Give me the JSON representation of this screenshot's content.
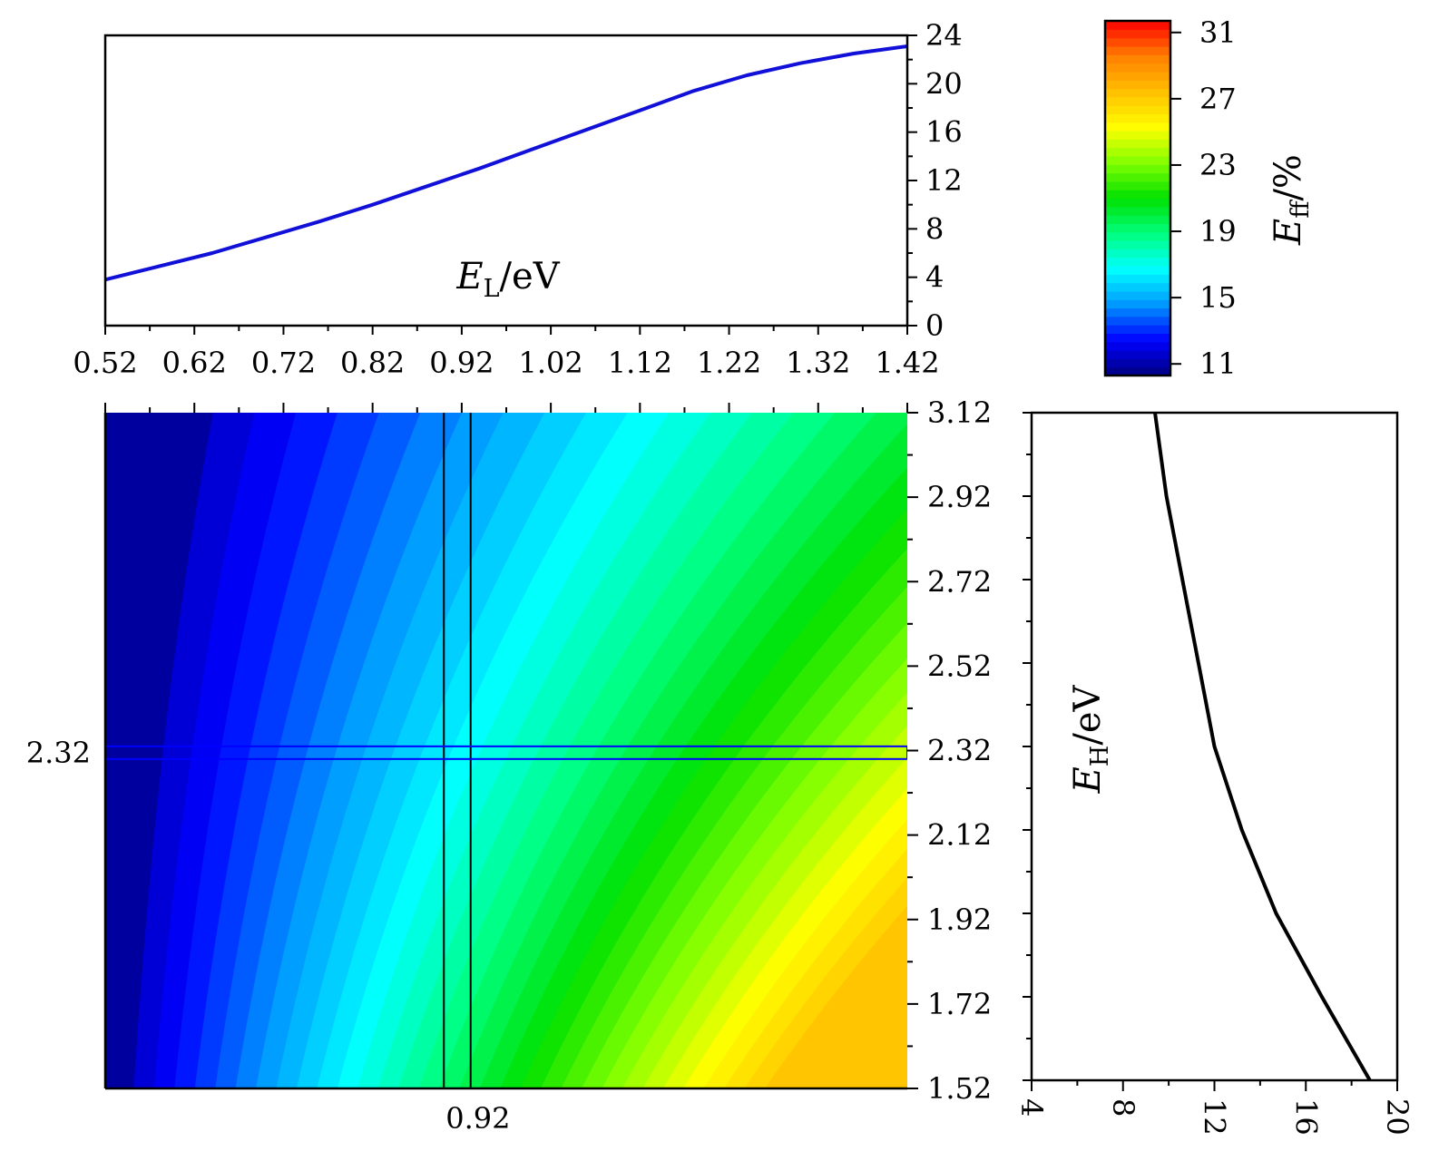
{
  "chart_data": [
    {
      "id": "top",
      "type": "line",
      "xlabel": {
        "main": "E",
        "sub": "L",
        "rest": "/eV"
      },
      "x_ticks": [
        "0.52",
        "0.62",
        "0.72",
        "0.82",
        "0.92",
        "1.02",
        "1.12",
        "1.22",
        "1.32",
        "1.42"
      ],
      "y_ticks": [
        "0",
        "4",
        "8",
        "12",
        "16",
        "20",
        "24"
      ],
      "xlim": [
        0.52,
        1.42
      ],
      "ylim": [
        0,
        24
      ],
      "color": "#1010d8",
      "series": [
        {
          "x": [
            0.52,
            0.58,
            0.64,
            0.7,
            0.76,
            0.82,
            0.88,
            0.94,
            1.0,
            1.06,
            1.12,
            1.18,
            1.24,
            1.3,
            1.36,
            1.42
          ],
          "y": [
            3.8,
            4.9,
            6.0,
            7.3,
            8.6,
            10.0,
            11.5,
            13.0,
            14.6,
            16.2,
            17.8,
            19.4,
            20.7,
            21.7,
            22.5,
            23.1
          ]
        }
      ]
    },
    {
      "id": "colorbar",
      "type": "heatmap",
      "label": {
        "main": "E",
        "sub": "ff",
        "rest": "/%"
      },
      "ticks": [
        "11",
        "15",
        "19",
        "23",
        "27",
        "31"
      ],
      "range": [
        10.3,
        31.7
      ],
      "colors": [
        "#000080",
        "#0000ff",
        "#0096ff",
        "#00ffff",
        "#00ff80",
        "#00e000",
        "#80ff00",
        "#ffff00",
        "#ffc000",
        "#ff8000",
        "#ff0000"
      ]
    },
    {
      "id": "main",
      "type": "heatmap",
      "x_ticks": [
        "0.92"
      ],
      "y_ticks_left": [
        "2.32"
      ],
      "y_ticks_right": [
        "1.52",
        "1.72",
        "1.92",
        "2.12",
        "2.32",
        "2.52",
        "2.72",
        "2.92",
        "3.12"
      ],
      "xlim": [
        0.52,
        1.42
      ],
      "ylim": [
        1.52,
        3.12
      ],
      "crosshair_x": [
        0.9,
        0.93
      ],
      "crosshair_y": [
        2.3,
        2.33
      ],
      "levels": [
        11.5,
        12.0,
        12.5,
        13.0,
        13.5,
        14.0,
        14.5,
        15.0,
        15.5,
        16.0,
        16.5,
        17.0,
        17.5,
        18.0,
        18.5,
        19.0,
        19.5,
        20.0,
        20.5,
        21.0,
        21.5,
        22.0,
        22.5,
        23.0,
        23.5,
        24.0,
        24.5,
        25.0,
        25.5,
        26.0,
        26.5,
        27.0
      ]
    },
    {
      "id": "right",
      "type": "line",
      "ylabel": {
        "main": "E",
        "sub": "H",
        "rest": "/eV"
      },
      "x_ticks": [
        "4",
        "8",
        "12",
        "16",
        "20"
      ],
      "xlim": [
        4,
        20
      ],
      "ylim": [
        1.52,
        3.12
      ],
      "color": "#000000",
      "series": [
        {
          "y": [
            3.12,
            2.92,
            2.72,
            2.52,
            2.32,
            2.12,
            1.92,
            1.72,
            1.52
          ],
          "x": [
            9.4,
            9.9,
            10.6,
            11.3,
            12.0,
            13.2,
            14.7,
            16.7,
            18.8
          ]
        }
      ]
    }
  ]
}
